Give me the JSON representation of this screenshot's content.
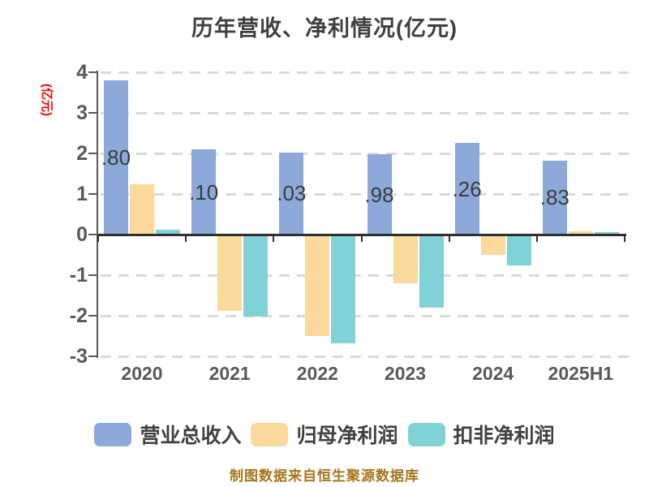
{
  "chart_data": {
    "type": "bar",
    "title": "历年营收、净利情况(亿元)",
    "ylabel": "(亿元)",
    "footer": "制图数据来自恒生聚源数据库",
    "categories": [
      "2020",
      "2021",
      "2022",
      "2023",
      "2024",
      "2025H1"
    ],
    "series": [
      {
        "name": "营业总收入",
        "key": "revenue",
        "color": "#8ca9da",
        "values": [
          3.8,
          2.1,
          2.03,
          1.98,
          2.26,
          1.83
        ],
        "visible_bar_labels": [
          ".80",
          ".10",
          ".03",
          ".98",
          ".26",
          ".83"
        ]
      },
      {
        "name": "归母净利润",
        "key": "net-profit",
        "color": "#fbd99c",
        "values": [
          1.25,
          -1.84,
          -2.46,
          -1.16,
          -0.46,
          0.09
        ]
      },
      {
        "name": "扣非净利润",
        "key": "deducted-net-profit",
        "color": "#7fd2d6",
        "values": [
          0.12,
          -1.98,
          -2.64,
          -1.76,
          -0.73,
          0.07
        ]
      }
    ],
    "ylim": [
      -3,
      4
    ],
    "yticks": [
      4,
      3,
      2,
      1,
      0,
      -1,
      -2,
      -3
    ],
    "grid": "horizontal-dashed",
    "legend_position": "bottom",
    "colors": {
      "title_text": "#3f3f3f",
      "axis_tick_text": "#595959",
      "ylabel_text": "#fe0000",
      "footer_text": "#a9731b",
      "gridline": "#d9d9d9",
      "zero_axis": "#2e2e2e"
    }
  }
}
